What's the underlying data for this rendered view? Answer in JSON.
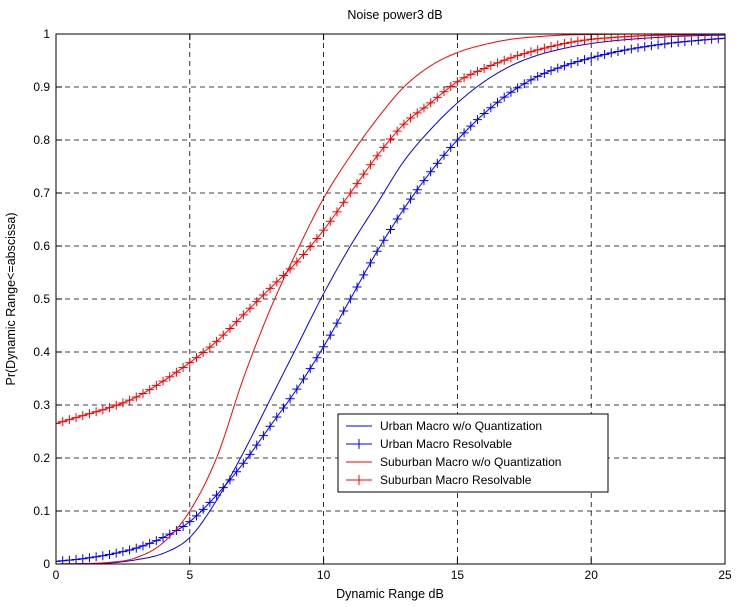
{
  "chart_data": {
    "type": "line",
    "title": "Noise power3 dB",
    "xlabel": "Dynamic Range dB",
    "ylabel": "Pr(Dynamic Range<=abscissa)",
    "xlim": [
      0,
      25
    ],
    "ylim": [
      0,
      1
    ],
    "xticks": [
      "0",
      "5",
      "10",
      "15",
      "20",
      "25"
    ],
    "yticks": [
      "0",
      "0.1",
      "0.2",
      "0.3",
      "0.4",
      "0.5",
      "0.6",
      "0.7",
      "0.8",
      "0.9",
      "1"
    ],
    "grid": true,
    "legend_position": "lower-right",
    "series": [
      {
        "name": "Urban Macro w/o Quantization",
        "color": "#0000ff",
        "marker": "none",
        "points": [
          [
            0,
            0
          ],
          [
            2,
            0.002
          ],
          [
            3,
            0.008
          ],
          [
            4,
            0.02
          ],
          [
            5,
            0.05
          ],
          [
            6,
            0.12
          ],
          [
            7,
            0.21
          ],
          [
            8,
            0.31
          ],
          [
            9,
            0.41
          ],
          [
            10,
            0.51
          ],
          [
            11,
            0.6
          ],
          [
            12,
            0.68
          ],
          [
            13,
            0.76
          ],
          [
            14,
            0.82
          ],
          [
            15,
            0.87
          ],
          [
            16,
            0.91
          ],
          [
            17,
            0.94
          ],
          [
            18,
            0.96
          ],
          [
            19,
            0.973
          ],
          [
            20,
            0.982
          ],
          [
            21,
            0.988
          ],
          [
            22,
            0.992
          ],
          [
            23,
            0.995
          ],
          [
            24,
            0.997
          ],
          [
            25,
            0.998
          ]
        ]
      },
      {
        "name": "Urban Macro Resolvable",
        "color": "#0000ff",
        "marker": "+",
        "points": [
          [
            0,
            0.005
          ],
          [
            1,
            0.01
          ],
          [
            2,
            0.018
          ],
          [
            3,
            0.03
          ],
          [
            4,
            0.05
          ],
          [
            5,
            0.08
          ],
          [
            6,
            0.13
          ],
          [
            7,
            0.19
          ],
          [
            8,
            0.26
          ],
          [
            9,
            0.33
          ],
          [
            10,
            0.41
          ],
          [
            11,
            0.5
          ],
          [
            12,
            0.59
          ],
          [
            13,
            0.67
          ],
          [
            14,
            0.74
          ],
          [
            15,
            0.8
          ],
          [
            16,
            0.85
          ],
          [
            17,
            0.89
          ],
          [
            18,
            0.92
          ],
          [
            19,
            0.94
          ],
          [
            20,
            0.955
          ],
          [
            21,
            0.967
          ],
          [
            22,
            0.976
          ],
          [
            23,
            0.983
          ],
          [
            24,
            0.988
          ],
          [
            25,
            0.992
          ]
        ]
      },
      {
        "name": "Suburban Macro w/o Quantization",
        "color": "#ff0000",
        "marker": "none",
        "points": [
          [
            0,
            0
          ],
          [
            2,
            0.003
          ],
          [
            3,
            0.012
          ],
          [
            4,
            0.04
          ],
          [
            5,
            0.1
          ],
          [
            6,
            0.2
          ],
          [
            7,
            0.35
          ],
          [
            8,
            0.48
          ],
          [
            9,
            0.59
          ],
          [
            10,
            0.69
          ],
          [
            11,
            0.77
          ],
          [
            12,
            0.84
          ],
          [
            13,
            0.9
          ],
          [
            14,
            0.94
          ],
          [
            15,
            0.965
          ],
          [
            16,
            0.98
          ],
          [
            17,
            0.99
          ],
          [
            18,
            0.995
          ],
          [
            19,
            0.998
          ],
          [
            20,
            0.999
          ],
          [
            22,
            1
          ],
          [
            25,
            1
          ]
        ]
      },
      {
        "name": "Suburban Macro Resolvable",
        "color": "#ff0000",
        "marker": "+",
        "points": [
          [
            0,
            0.265
          ],
          [
            1,
            0.28
          ],
          [
            2,
            0.295
          ],
          [
            3,
            0.315
          ],
          [
            4,
            0.345
          ],
          [
            5,
            0.38
          ],
          [
            6,
            0.42
          ],
          [
            7,
            0.47
          ],
          [
            8,
            0.52
          ],
          [
            9,
            0.57
          ],
          [
            10,
            0.63
          ],
          [
            11,
            0.7
          ],
          [
            12,
            0.77
          ],
          [
            13,
            0.83
          ],
          [
            14,
            0.87
          ],
          [
            15,
            0.91
          ],
          [
            16,
            0.935
          ],
          [
            17,
            0.955
          ],
          [
            18,
            0.97
          ],
          [
            19,
            0.982
          ],
          [
            20,
            0.99
          ],
          [
            21,
            0.994
          ],
          [
            22,
            0.997
          ],
          [
            23,
            0.998
          ],
          [
            24,
            0.999
          ],
          [
            25,
            1
          ]
        ]
      }
    ]
  }
}
